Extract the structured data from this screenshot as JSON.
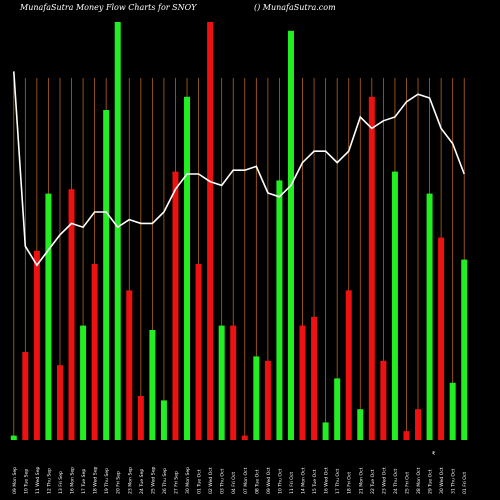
{
  "title": "MunafaSutra  Money Flow  Charts for SNOY",
  "watermark": "() MunafaSutra.com",
  "axis_mark": "₹",
  "colors": {
    "background": "#000000",
    "up": "#22ee22",
    "down": "#ee1111",
    "line": "#ffffff",
    "grid": "#b5651d"
  },
  "chart_data": {
    "type": "bar",
    "grid": true,
    "legend": "none",
    "ylim": [
      0,
      100
    ],
    "categories": [
      "01 Fri Oct",
      "31 Thu Oct",
      "30 Wed Oct",
      "29 Tue Oct",
      "28 Mon Oct",
      "25 Fri Oct",
      "24 Thu Oct",
      "23 Wed Oct",
      "22 Tue Oct",
      "21 Mon Oct",
      "18 Fri Oct",
      "17 Thu Oct",
      "16 Wed Oct",
      "15 Tue Oct",
      "14 Mon Oct",
      "11 Fri Oct",
      "10 Thu Oct",
      "09 Wed Oct",
      "08 Tue Oct",
      "07 Mon Oct",
      "04 Fri Oct",
      "03 Thu Oct",
      "02 Wed Oct",
      "01 Tue Oct",
      "30 Mon Sep",
      "27 Fri Sep",
      "26 Thu Sep",
      "25 Wed Sep",
      "24 Tue Sep",
      "23 Mon Sep",
      "20 Fri Sep",
      "19 Thu Sep",
      "18 Wed Sep",
      "17 Tue Sep",
      "16 Mon Sep",
      "13 Fri Sep",
      "12 Thu Sep",
      "11 Wed Sep",
      "10 Tue Sep",
      "09 Mon Sep"
    ],
    "series": [
      {
        "values": [
          41,
          13,
          46,
          56,
          7,
          2,
          61,
          18,
          78,
          7,
          34,
          14,
          4,
          28,
          26,
          93,
          59,
          18,
          19,
          1,
          26,
          26,
          95,
          40,
          78,
          61,
          9,
          25,
          10,
          34,
          95,
          75,
          40,
          26,
          57,
          17,
          56,
          43,
          20,
          1
        ]
      },
      {
        "type": "line",
        "values": [
          70,
          78,
          82,
          90,
          91,
          89,
          85,
          84,
          82,
          85,
          76,
          73,
          76,
          76,
          73,
          67,
          64,
          65,
          72,
          71,
          71,
          67,
          68,
          70,
          70,
          66,
          60,
          57,
          57,
          58,
          56,
          60,
          60,
          56,
          57,
          54,
          50,
          46,
          51,
          97
        ]
      }
    ]
  }
}
